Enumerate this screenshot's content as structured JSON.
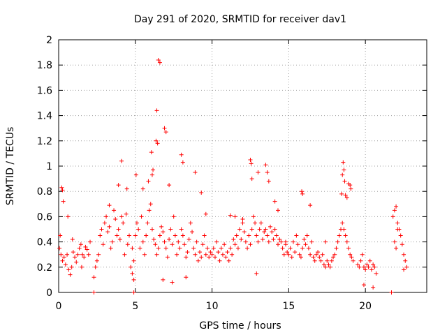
{
  "chart_data": {
    "type": "scatter",
    "title": "Day 291 of 2020, SRMTID for receiver dav1",
    "xlabel": "GPS time / hours",
    "ylabel": "SRMTID / TECUs",
    "xlim": [
      0,
      24
    ],
    "ylim": [
      0,
      2
    ],
    "xticks": [
      "0",
      "5",
      "10",
      "15",
      "20"
    ],
    "yticks": [
      "0",
      "0.2",
      "0.4",
      "0.6",
      "0.8",
      "1",
      "1.2",
      "1.4",
      "1.6",
      "1.8",
      "2"
    ],
    "grid": true,
    "marker": "+",
    "color": "#ff0000",
    "series": [
      {
        "name": "SRMTID",
        "x": [
          0.05,
          0.15,
          0.25,
          0.35,
          0.45,
          0.55,
          0.65,
          0.75,
          0.85,
          0.95,
          1.05,
          1.15,
          1.25,
          1.35,
          1.45,
          1.55,
          1.65,
          1.75,
          1.85,
          1.95,
          2.05,
          0.2,
          0.25,
          0.3,
          0.1,
          0.6,
          0.9,
          1.5,
          2.3,
          2.4,
          2.5,
          2.6,
          2.7,
          2.8,
          2.9,
          3.0,
          3.1,
          3.2,
          3.3,
          3.4,
          3.5,
          3.6,
          3.7,
          3.8,
          3.9,
          4.0,
          4.1,
          4.2,
          4.3,
          4.4,
          4.5,
          4.6,
          4.7,
          4.8,
          4.9,
          3.3,
          3.9,
          4.1,
          4.45,
          4.8,
          4.9,
          5.0,
          5.1,
          5.2,
          5.3,
          5.4,
          5.5,
          5.6,
          5.7,
          5.8,
          5.9,
          6.0,
          6.1,
          6.2,
          6.3,
          6.4,
          6.5,
          6.6,
          6.7,
          6.8,
          6.9,
          7.0,
          7.1,
          7.2,
          7.3,
          7.4,
          7.5,
          7.6,
          7.7,
          7.8,
          7.9,
          8.0,
          8.1,
          8.2,
          8.3,
          8.4,
          8.5,
          8.6,
          8.7,
          8.8,
          8.9,
          9.0,
          9.1,
          9.2,
          9.3,
          9.4,
          9.5,
          9.6,
          9.7,
          9.8,
          9.9,
          5.05,
          5.5,
          5.85,
          6.05,
          6.1,
          6.15,
          6.35,
          6.45,
          6.4,
          6.5,
          6.6,
          6.9,
          7.0,
          7.2,
          8.0,
          8.1,
          8.9,
          9.3,
          9.6,
          6.8,
          7.4,
          8.3,
          10.0,
          10.1,
          10.2,
          10.3,
          10.4,
          10.5,
          10.6,
          10.7,
          10.8,
          10.9,
          11.0,
          11.1,
          11.2,
          11.3,
          11.4,
          11.5,
          11.6,
          11.7,
          11.8,
          11.9,
          12.0,
          12.1,
          12.2,
          12.3,
          12.4,
          12.5,
          12.6,
          12.7,
          12.8,
          12.9,
          13.0,
          13.1,
          13.2,
          13.3,
          13.4,
          13.5,
          13.6,
          13.7,
          13.8,
          13.9,
          14.0,
          14.1,
          14.2,
          14.3,
          14.4,
          14.5,
          14.6,
          14.7,
          14.8,
          14.9,
          12.5,
          12.55,
          12.6,
          13.0,
          13.5,
          13.6,
          13.7,
          14.1,
          14.3,
          14.8,
          11.2,
          11.5,
          12.0,
          12.9,
          15.0,
          15.1,
          15.2,
          15.3,
          15.4,
          15.5,
          15.6,
          15.7,
          15.8,
          15.9,
          16.0,
          16.1,
          16.2,
          16.3,
          16.4,
          16.5,
          16.6,
          16.7,
          16.8,
          16.9,
          17.0,
          17.1,
          17.2,
          17.3,
          17.4,
          17.5,
          17.6,
          17.7,
          17.8,
          17.9,
          18.0,
          18.1,
          18.2,
          18.3,
          18.4,
          18.5,
          18.6,
          18.7,
          18.8,
          18.9,
          19.0,
          19.1,
          19.2,
          15.85,
          15.9,
          16.4,
          18.45,
          18.5,
          18.55,
          18.6,
          18.65,
          18.7,
          18.8,
          18.9,
          19.0,
          19.05,
          17.4,
          19.5,
          19.6,
          19.7,
          19.8,
          19.9,
          20.0,
          20.1,
          20.2,
          20.3,
          20.4,
          20.5,
          20.6,
          20.7,
          19.9,
          20.5,
          21.8,
          21.9,
          22.0,
          22.1,
          22.2,
          22.3,
          22.4,
          22.5,
          22.6,
          22.7,
          21.9,
          22.0,
          22.1,
          22.5,
          2.3,
          4.9,
          21.7
        ],
        "y": [
          0.35,
          0.3,
          0.25,
          0.28,
          0.22,
          0.3,
          0.18,
          0.14,
          0.2,
          0.32,
          0.28,
          0.24,
          0.3,
          0.35,
          0.38,
          0.3,
          0.28,
          0.36,
          0.34,
          0.3,
          0.4,
          0.83,
          0.81,
          0.72,
          0.45,
          0.6,
          0.42,
          0.2,
          0.12,
          0.2,
          0.25,
          0.3,
          0.45,
          0.5,
          0.38,
          0.55,
          0.6,
          0.48,
          0.52,
          0.35,
          0.4,
          0.65,
          0.58,
          0.45,
          0.5,
          0.42,
          0.6,
          0.55,
          0.3,
          0.62,
          0.38,
          0.45,
          0.2,
          0.35,
          0.25,
          0.69,
          0.85,
          1.04,
          0.82,
          0.15,
          0.1,
          0.45,
          0.55,
          0.5,
          0.35,
          0.6,
          0.4,
          0.3,
          0.45,
          0.55,
          0.65,
          0.7,
          0.5,
          0.42,
          0.38,
          0.3,
          0.35,
          0.45,
          0.52,
          0.48,
          0.4,
          0.35,
          0.28,
          0.42,
          0.5,
          0.38,
          0.6,
          0.45,
          0.3,
          0.4,
          0.35,
          0.5,
          0.45,
          0.38,
          0.28,
          0.32,
          0.42,
          0.55,
          0.48,
          0.35,
          0.3,
          0.4,
          0.25,
          0.32,
          0.28,
          0.38,
          0.45,
          0.3,
          0.35,
          0.28,
          0.32,
          0.93,
          0.82,
          0.88,
          1.11,
          0.93,
          0.97,
          1.2,
          1.18,
          1.44,
          1.84,
          1.82,
          1.3,
          1.27,
          0.85,
          1.09,
          1.03,
          0.95,
          0.79,
          0.62,
          0.1,
          0.08,
          0.12,
          0.3,
          0.35,
          0.28,
          0.4,
          0.32,
          0.25,
          0.35,
          0.3,
          0.38,
          0.28,
          0.32,
          0.25,
          0.35,
          0.3,
          0.42,
          0.38,
          0.45,
          0.35,
          0.5,
          0.42,
          0.55,
          0.48,
          0.4,
          0.35,
          0.45,
          0.38,
          0.5,
          0.6,
          0.55,
          0.45,
          0.4,
          0.5,
          0.55,
          0.42,
          0.48,
          0.5,
          0.45,
          0.4,
          0.52,
          0.48,
          0.42,
          0.5,
          0.45,
          0.38,
          0.42,
          0.4,
          0.35,
          0.3,
          0.38,
          0.32,
          1.05,
          1.02,
          0.9,
          0.95,
          1.01,
          0.95,
          0.88,
          0.72,
          0.65,
          0.4,
          0.61,
          0.6,
          0.58,
          0.15,
          0.3,
          0.35,
          0.28,
          0.4,
          0.32,
          0.45,
          0.38,
          0.3,
          0.28,
          0.35,
          0.42,
          0.38,
          0.45,
          0.35,
          0.3,
          0.4,
          0.28,
          0.25,
          0.3,
          0.32,
          0.28,
          0.25,
          0.3,
          0.22,
          0.2,
          0.25,
          0.22,
          0.2,
          0.25,
          0.28,
          0.3,
          0.35,
          0.4,
          0.45,
          0.5,
          0.55,
          0.5,
          0.45,
          0.4,
          0.35,
          0.3,
          0.28,
          0.25,
          0.8,
          0.78,
          0.69,
          0.78,
          0.93,
          1.03,
          0.97,
          0.88,
          0.77,
          0.75,
          0.86,
          0.85,
          0.82,
          0.4,
          0.22,
          0.2,
          0.25,
          0.3,
          0.2,
          0.18,
          0.22,
          0.2,
          0.25,
          0.18,
          0.22,
          0.2,
          0.15,
          0.06,
          0.04,
          0.6,
          0.65,
          0.68,
          0.55,
          0.5,
          0.45,
          0.38,
          0.3,
          0.25,
          0.2,
          0.4,
          0.35,
          0.5,
          0.18,
          0.0,
          0.0,
          0.0
        ]
      }
    ]
  }
}
